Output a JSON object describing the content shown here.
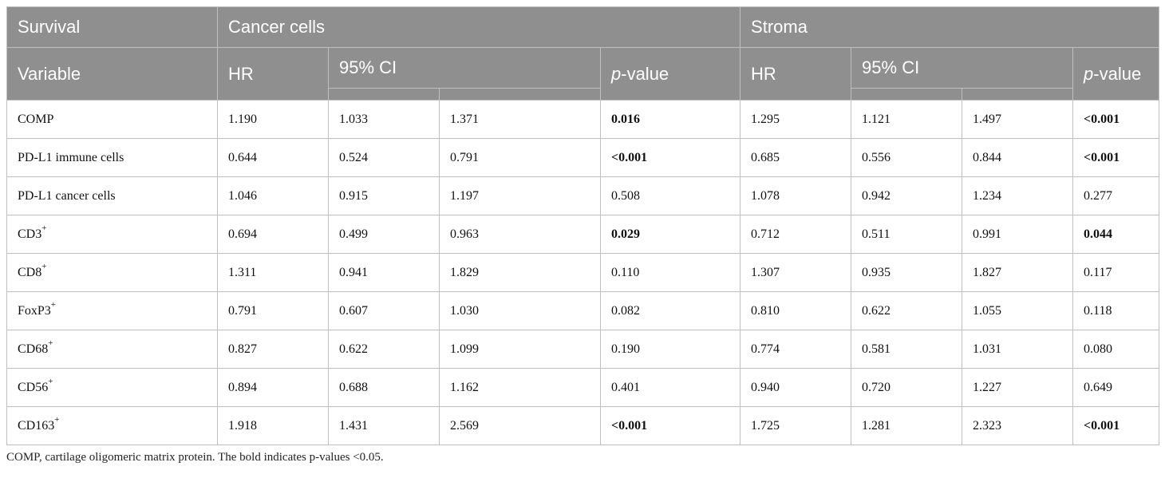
{
  "table": {
    "header_row1": {
      "survival": "Survival",
      "cancer_cells": "Cancer cells",
      "stroma": "Stroma"
    },
    "header_row2": {
      "variable": "Variable",
      "hr": "HR",
      "ci": "95% CI",
      "pvalue_italic": "p",
      "pvalue_rest": "-value"
    },
    "rows": [
      {
        "variable": "COMP",
        "sup": "",
        "c_hr": "1.190",
        "c_lo": "1.033",
        "c_hi": "1.371",
        "c_p": "0.016",
        "c_bold": true,
        "s_hr": "1.295",
        "s_lo": "1.121",
        "s_hi": "1.497",
        "s_p": "<0.001",
        "s_bold": true
      },
      {
        "variable": "PD-L1 immune cells",
        "sup": "",
        "c_hr": "0.644",
        "c_lo": "0.524",
        "c_hi": "0.791",
        "c_p": "<0.001",
        "c_bold": true,
        "s_hr": "0.685",
        "s_lo": "0.556",
        "s_hi": "0.844",
        "s_p": "<0.001",
        "s_bold": true
      },
      {
        "variable": "PD-L1 cancer cells",
        "sup": "",
        "c_hr": "1.046",
        "c_lo": "0.915",
        "c_hi": "1.197",
        "c_p": "0.508",
        "c_bold": false,
        "s_hr": "1.078",
        "s_lo": "0.942",
        "s_hi": "1.234",
        "s_p": "0.277",
        "s_bold": false
      },
      {
        "variable": "CD3",
        "sup": "+",
        "c_hr": "0.694",
        "c_lo": "0.499",
        "c_hi": "0.963",
        "c_p": "0.029",
        "c_bold": true,
        "s_hr": "0.712",
        "s_lo": "0.511",
        "s_hi": "0.991",
        "s_p": "0.044",
        "s_bold": true
      },
      {
        "variable": "CD8",
        "sup": "+",
        "c_hr": "1.311",
        "c_lo": "0.941",
        "c_hi": "1.829",
        "c_p": "0.110",
        "c_bold": false,
        "s_hr": "1.307",
        "s_lo": "0.935",
        "s_hi": "1.827",
        "s_p": "0.117",
        "s_bold": false
      },
      {
        "variable": "FoxP3",
        "sup": "+",
        "c_hr": "0.791",
        "c_lo": "0.607",
        "c_hi": "1.030",
        "c_p": "0.082",
        "c_bold": false,
        "s_hr": "0.810",
        "s_lo": "0.622",
        "s_hi": "1.055",
        "s_p": "0.118",
        "s_bold": false
      },
      {
        "variable": "CD68",
        "sup": "+",
        "c_hr": "0.827",
        "c_lo": "0.622",
        "c_hi": "1.099",
        "c_p": "0.190",
        "c_bold": false,
        "s_hr": "0.774",
        "s_lo": "0.581",
        "s_hi": "1.031",
        "s_p": "0.080",
        "s_bold": false
      },
      {
        "variable": "CD56",
        "sup": "+",
        "c_hr": "0.894",
        "c_lo": "0.688",
        "c_hi": "1.162",
        "c_p": "0.401",
        "c_bold": false,
        "s_hr": "0.940",
        "s_lo": "0.720",
        "s_hi": "1.227",
        "s_p": "0.649",
        "s_bold": false
      },
      {
        "variable": "CD163",
        "sup": "+",
        "c_hr": "1.918",
        "c_lo": "1.431",
        "c_hi": "2.569",
        "c_p": "<0.001",
        "c_bold": true,
        "s_hr": "1.725",
        "s_lo": "1.281",
        "s_hi": "2.323",
        "s_p": "<0.001",
        "s_bold": true
      }
    ]
  },
  "footnote": "COMP, cartilage oligomeric matrix protein. The bold indicates p-values <0.05.",
  "colors": {
    "header_bg": "#8f8f8f",
    "header_text": "#ffffff",
    "grid": "#bfbfbf"
  }
}
